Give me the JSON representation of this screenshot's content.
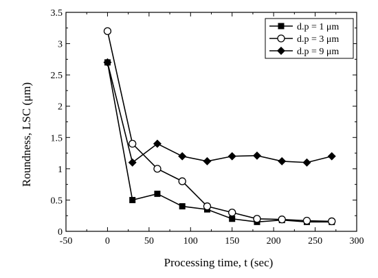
{
  "chart_data": {
    "type": "line",
    "title": "",
    "xlabel": "Processing time, t (sec)",
    "ylabel": "Roundness, LSC (μm)",
    "xlim": [
      -50,
      300
    ],
    "ylim": [
      0,
      3.5
    ],
    "xticks": [
      -50,
      0,
      50,
      100,
      150,
      200,
      250,
      300
    ],
    "yticks": [
      0,
      0.5,
      1,
      1.5,
      2,
      2.5,
      3,
      3.5
    ],
    "grid": false,
    "legend_position": "top-right",
    "series": [
      {
        "name": "d.p = 1 μm",
        "marker": "filled-square",
        "x": [
          0,
          30,
          60,
          90,
          120,
          150,
          180,
          210,
          240,
          270
        ],
        "y": [
          2.7,
          0.5,
          0.6,
          0.4,
          0.35,
          0.2,
          0.15,
          0.18,
          0.15,
          0.15
        ]
      },
      {
        "name": "d.p = 3 μm",
        "marker": "open-circle",
        "x": [
          0,
          30,
          60,
          90,
          120,
          150,
          180,
          210,
          240,
          270
        ],
        "y": [
          3.2,
          1.4,
          1.0,
          0.8,
          0.4,
          0.3,
          0.2,
          0.19,
          0.17,
          0.16
        ]
      },
      {
        "name": "d.p = 9 μm",
        "marker": "filled-diamond",
        "x": [
          0,
          30,
          60,
          90,
          120,
          150,
          180,
          210,
          240,
          270
        ],
        "y": [
          2.7,
          1.1,
          1.4,
          1.2,
          1.12,
          1.2,
          1.21,
          1.12,
          1.1,
          1.2
        ]
      }
    ]
  }
}
